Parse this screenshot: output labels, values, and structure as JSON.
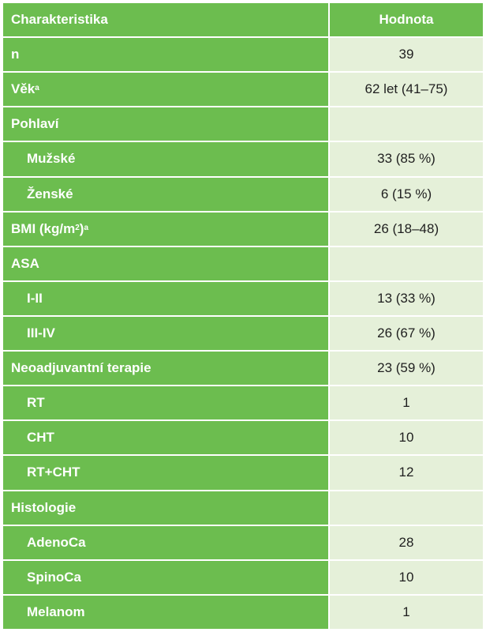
{
  "table": {
    "header": {
      "characteristic": "Charakteristika",
      "value": "Hodnota"
    },
    "rows": [
      {
        "label": "n",
        "value": "39"
      },
      {
        "label": "Věk",
        "note": "a",
        "value": "62 let (41–75)"
      },
      {
        "label": "Pohlaví",
        "value": ""
      },
      {
        "label": "Mužské",
        "value": "33 (85 %)"
      },
      {
        "label": "Ženské",
        "value": "6 (15 %)"
      },
      {
        "label": "BMI (kg/m",
        "unit_exp": "2",
        "label_end": ")",
        "note": "a",
        "value": "26 (18–48)"
      },
      {
        "label": "ASA",
        "value": ""
      },
      {
        "label": "I-II",
        "value": "13 (33 %)"
      },
      {
        "label": "III-IV",
        "value": "26 (67 %)"
      },
      {
        "label": "Neoadjuvantní terapie",
        "value": "23 (59 %)"
      },
      {
        "label": "RT",
        "value": "1"
      },
      {
        "label": "CHT",
        "value": "10"
      },
      {
        "label": "RT+CHT",
        "value": "12"
      },
      {
        "label": "Histologie",
        "value": ""
      },
      {
        "label": "AdenoCa",
        "value": "28"
      },
      {
        "label": "SpinoCa",
        "value": "10"
      },
      {
        "label": "Melanom",
        "value": "1"
      }
    ]
  }
}
